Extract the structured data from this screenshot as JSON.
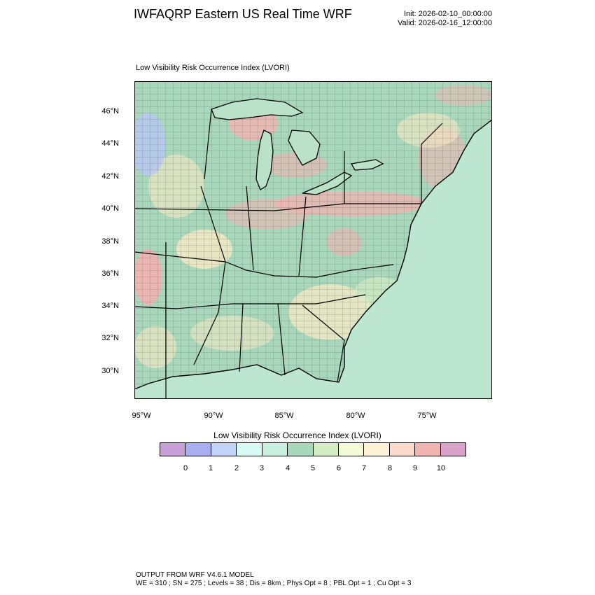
{
  "header": {
    "title": "IWFAQRP Eastern US Real Time WRF",
    "init": "Init: 2026-02-10_00:00:00",
    "valid": "Valid: 2026-02-16_12:00:00"
  },
  "map": {
    "plot_title": "Low Visibility Risk Occurrence Index   (LVORI)",
    "lat_labels": [
      "46°N",
      "44°N",
      "42°N",
      "40°N",
      "38°N",
      "36°N",
      "34°N",
      "32°N",
      "30°N"
    ],
    "lon_labels": [
      "95°W",
      "90°W",
      "85°W",
      "80°W",
      "75°W"
    ],
    "colors": {
      "land_base": "#a9d7bc",
      "ocean": "#b9e2c9",
      "risk_high": "#f2b3b0",
      "risk_mid": "#f8e9c4",
      "risk_low": "#b8c6f2",
      "water": "#c8d6ff"
    }
  },
  "colorbar": {
    "title": "Low Visibility Risk Occurrence Index  (LVORI)",
    "colors": [
      "#c79ed6",
      "#a9aef0",
      "#c3d3f7",
      "#d7fbf4",
      "#c7efdf",
      "#a9d7bc",
      "#d3ecc4",
      "#f3fbd6",
      "#fdf4d8",
      "#fbd8ca",
      "#f0b3b0",
      "#d9a2c9"
    ],
    "labels": [
      "0",
      "1",
      "2",
      "3",
      "4",
      "5",
      "6",
      "7",
      "8",
      "9",
      "10"
    ]
  },
  "footer": {
    "line1": "OUTPUT FROM WRF V4.6.1 MODEL",
    "line2": "WE = 310 ; SN = 275 ; Levels = 38 ; Dis = 8km ; Phys Opt = 8 ; PBL Opt = 1 ; Cu Opt = 3"
  }
}
